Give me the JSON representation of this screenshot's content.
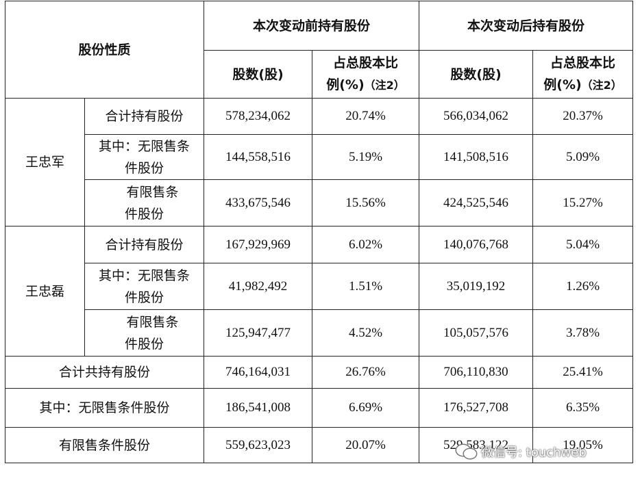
{
  "table": {
    "header": {
      "type_col": "股份性质",
      "before_group": "本次变动前持有股份",
      "after_group": "本次变动后持有股份",
      "shares_label": "股数(股)",
      "ratio_line1": "占总股本比",
      "ratio_line2": "例(%)",
      "ratio_note": "（注2）"
    },
    "holders": [
      {
        "name": "王忠军",
        "rows": [
          {
            "type_line1": "合计持有股份",
            "type_line2": "",
            "before_shares": "578,234,062",
            "before_ratio": "20.74%",
            "after_shares": "566,034,062",
            "after_ratio": "20.37%"
          },
          {
            "type_line1": "其中：无限售条",
            "type_line2": "件股份",
            "before_shares": "144,558,516",
            "before_ratio": "5.19%",
            "after_shares": "141,508,516",
            "after_ratio": "5.09%"
          },
          {
            "type_line1": "有限售条",
            "type_line2": "件股份",
            "before_shares": "433,675,546",
            "before_ratio": "15.56%",
            "after_shares": "424,525,546",
            "after_ratio": "15.27%"
          }
        ]
      },
      {
        "name": "王忠磊",
        "rows": [
          {
            "type_line1": "合计持有股份",
            "type_line2": "",
            "before_shares": "167,929,969",
            "before_ratio": "6.02%",
            "after_shares": "140,076,768",
            "after_ratio": "5.04%"
          },
          {
            "type_line1": "其中：无限售条",
            "type_line2": "件股份",
            "before_shares": "41,982,492",
            "before_ratio": "1.51%",
            "after_shares": "35,019,192",
            "after_ratio": "1.26%"
          },
          {
            "type_line1": "有限售条",
            "type_line2": "件股份",
            "before_shares": "125,947,477",
            "before_ratio": "4.52%",
            "after_shares": "105,057,576",
            "after_ratio": "3.78%"
          }
        ]
      }
    ],
    "totals": [
      {
        "label": "合计共持有股份",
        "before_shares": "746,164,031",
        "before_ratio": "26.76%",
        "after_shares": "706,110,830",
        "after_ratio": "25.41%"
      },
      {
        "label": "其中：无限售条件股份",
        "before_shares": "186,541,008",
        "before_ratio": "6.69%",
        "after_shares": "176,527,708",
        "after_ratio": "6.35%"
      },
      {
        "label": "有限售条件股份",
        "before_shares": "559,623,023",
        "before_ratio": "20.07%",
        "after_shares": "529,583,122",
        "after_ratio": "19.05%"
      }
    ]
  },
  "watermark": {
    "icon": "wechat-icon",
    "text": "微信号: touchweb"
  }
}
